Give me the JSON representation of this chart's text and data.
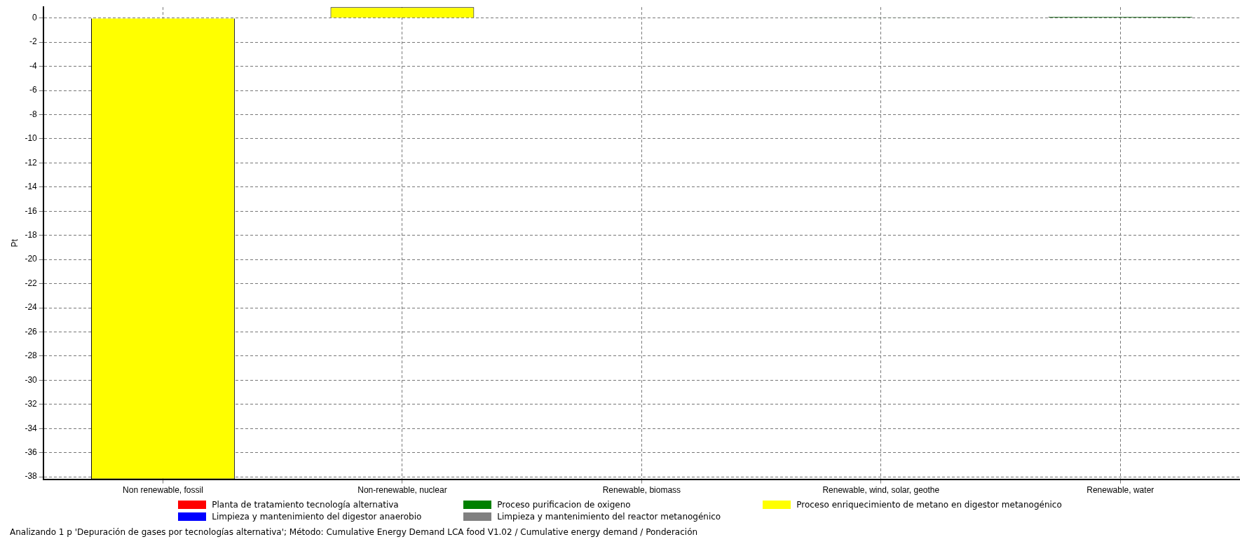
{
  "chart_data": {
    "type": "bar",
    "stacked": true,
    "ylabel": "Pt",
    "categories": [
      "Non renewable, fossil",
      "Non-renewable, nuclear",
      "Renewable, biomass",
      "Renewable, wind, solar, geothe",
      "Renewable, water"
    ],
    "series": [
      {
        "name": "Planta de tratamiento tecnología alternativa",
        "color": "#ff0000",
        "values": [
          0,
          0,
          0,
          0,
          0
        ]
      },
      {
        "name": "Limpieza y mantenimiento del digestor anaerobio",
        "color": "#0000ff",
        "values": [
          0,
          0,
          0,
          0,
          0
        ]
      },
      {
        "name": "Proceso purificacion de oxigeno",
        "color": "#008000",
        "values": [
          0,
          0,
          0,
          0.05,
          0.1
        ]
      },
      {
        "name": "Limpieza y mantenimiento del reactor metanogénico",
        "color": "#808080",
        "values": [
          0,
          0,
          0.02,
          0,
          0
        ]
      },
      {
        "name": "Proceso enriquecimiento de metano en digestor metanogénico",
        "color": "#ffff00",
        "values": [
          -38.2,
          0.9,
          0,
          0,
          0
        ]
      }
    ],
    "ylim": [
      -38.2,
      0.9
    ],
    "yticks": [
      0,
      -2,
      -4,
      -6,
      -8,
      -10,
      -12,
      -14,
      -16,
      -18,
      -20,
      -22,
      -24,
      -26,
      -28,
      -30,
      -32,
      -34,
      -36,
      -38
    ],
    "grid": true,
    "legend": "bottom",
    "annotations": [
      "Analizando 1 p 'Depuración de gases por tecnologías alternativa';  Método: Cumulative Energy Demand LCA food V1.02 / Cumulative energy demand / Ponderación"
    ]
  }
}
